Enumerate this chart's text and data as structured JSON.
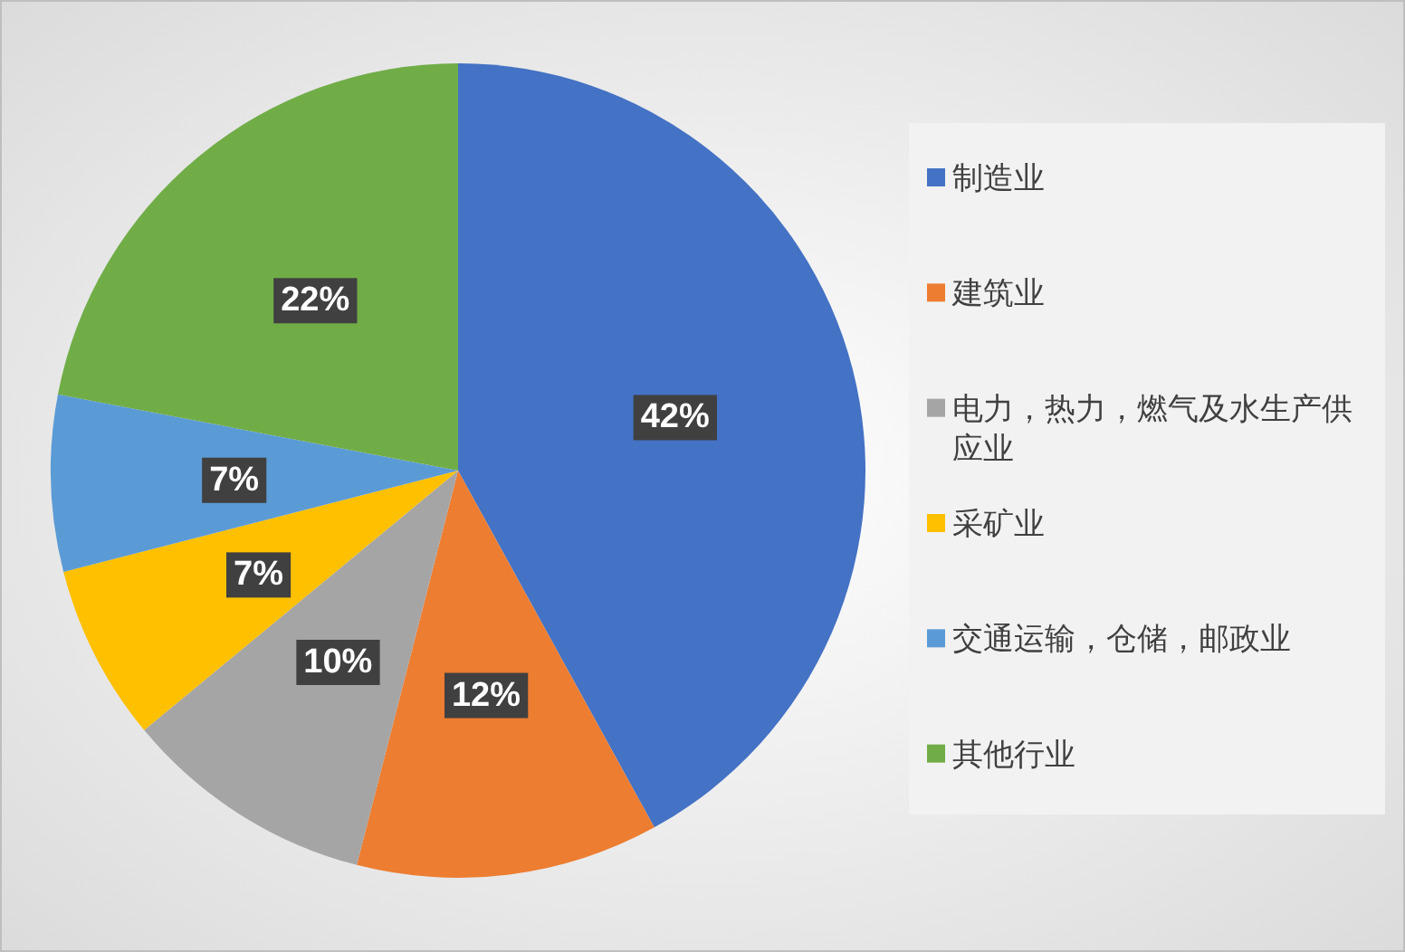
{
  "chart_data": {
    "type": "pie",
    "categories": [
      "制造业",
      "建筑业",
      "电力，热力，燃气及水生产供应业",
      "采矿业",
      "交通运输，仓储，邮政业",
      "其他行业"
    ],
    "values": [
      42,
      12,
      10,
      7,
      7,
      22
    ],
    "colors": [
      "#4472c4",
      "#ed7d31",
      "#a5a5a5",
      "#ffc000",
      "#5b9bd5",
      "#70ad47"
    ],
    "value_labels": [
      "42%",
      "12%",
      "10%",
      "7%",
      "7%",
      "22%"
    ],
    "legend": "right"
  }
}
